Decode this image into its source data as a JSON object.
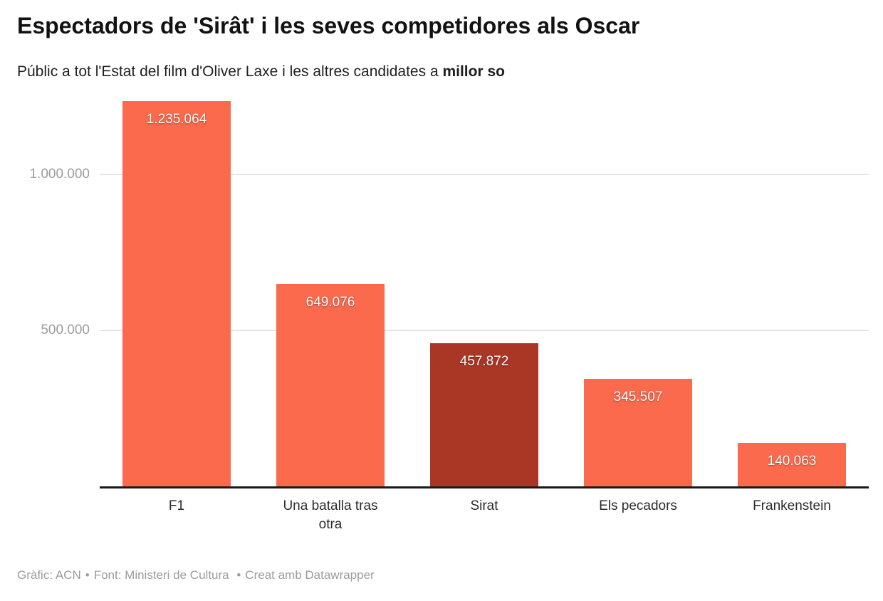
{
  "header": {
    "title": "Espectadors de 'Sirât' i les seves competidores als Oscar",
    "subtitle_prefix": "Públic a tot l'Estat del film d'Oliver Laxe i les altres candidates a ",
    "subtitle_bold": "millor so"
  },
  "chart_data": {
    "type": "bar",
    "title": "Espectadors de 'Sirât' i les seves competidores als Oscar",
    "subtitle": "Públic a tot l'Estat del film d'Oliver Laxe i les altres candidates a millor so",
    "categories": [
      "F1",
      "Una batalla tras otra",
      "Sirat",
      "Els pecadors",
      "Frankenstein"
    ],
    "values": [
      1235064,
      649076,
      457872,
      345507,
      140063
    ],
    "value_labels": [
      "1.235.064",
      "649.076",
      "457.872",
      "345.507",
      "140.063"
    ],
    "highlight_category": "Sirat",
    "y_ticks": [
      {
        "value": 500000,
        "label": "500.000"
      },
      {
        "value": 1000000,
        "label": "1.000.000"
      }
    ],
    "ylim": [
      0,
      1250000
    ],
    "grid": true,
    "legend": "none",
    "xlabel": "",
    "ylabel": ""
  },
  "colors": {
    "bar_default": "#fc6a4d",
    "bar_highlight": "#aa3726",
    "gridline": "#e4e4e4",
    "axis_line": "#191919",
    "tick_text": "#9c9c9c",
    "category_text": "#2b2b2b",
    "footer_text": "#9c9c9c",
    "title_text": "#121212"
  },
  "footer": {
    "credit": "Gràfic: ACN",
    "separator1": "•",
    "source": "Font: Ministeri de Cultura",
    "separator2": "•",
    "tool": "Creat amb Datawrapper"
  }
}
